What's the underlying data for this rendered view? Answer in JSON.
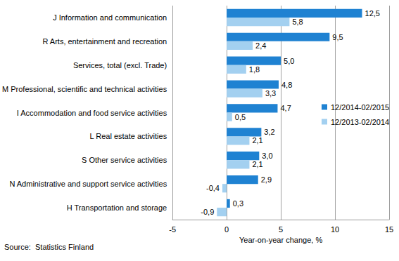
{
  "chart_data": {
    "type": "bar",
    "orientation": "horizontal",
    "x_label": "Year-on-year change, %",
    "source": "Source:  Statistics Finland",
    "categories": [
      "J Information and communication",
      "R Arts, entertainment and recreation",
      "Services, total (excl. Trade)",
      "M Professional, scientific and technical activities",
      "I Accommodation and food service activities",
      "L Real estate activities",
      "S Other service activities",
      "N Administrative and support service activities",
      "H Transportation and storage"
    ],
    "series": [
      {
        "name": "12/2014-02/2015",
        "color": "#1f82d2",
        "values": [
          12.5,
          9.5,
          5.0,
          4.8,
          4.7,
          3.2,
          3.0,
          2.9,
          0.3
        ],
        "value_labels": [
          "12,5",
          "9,5",
          "5,0",
          "4,8",
          "4,7",
          "3,2",
          "3,0",
          "2,9",
          "0,3"
        ]
      },
      {
        "name": "12/2013-02/2014",
        "color": "#a3d0f0",
        "values": [
          5.8,
          2.4,
          1.8,
          3.3,
          0.5,
          2.1,
          2.1,
          -0.4,
          -0.9
        ],
        "value_labels": [
          "5,8",
          "2,4",
          "1,8",
          "3,3",
          "0,5",
          "2,1",
          "2,1",
          "-0,4",
          "-0,9"
        ]
      }
    ],
    "xlim": [
      -5,
      15
    ],
    "xticks": [
      -5,
      0,
      5,
      10,
      15
    ],
    "grid": true,
    "legend": "right",
    "data_labels": true
  }
}
